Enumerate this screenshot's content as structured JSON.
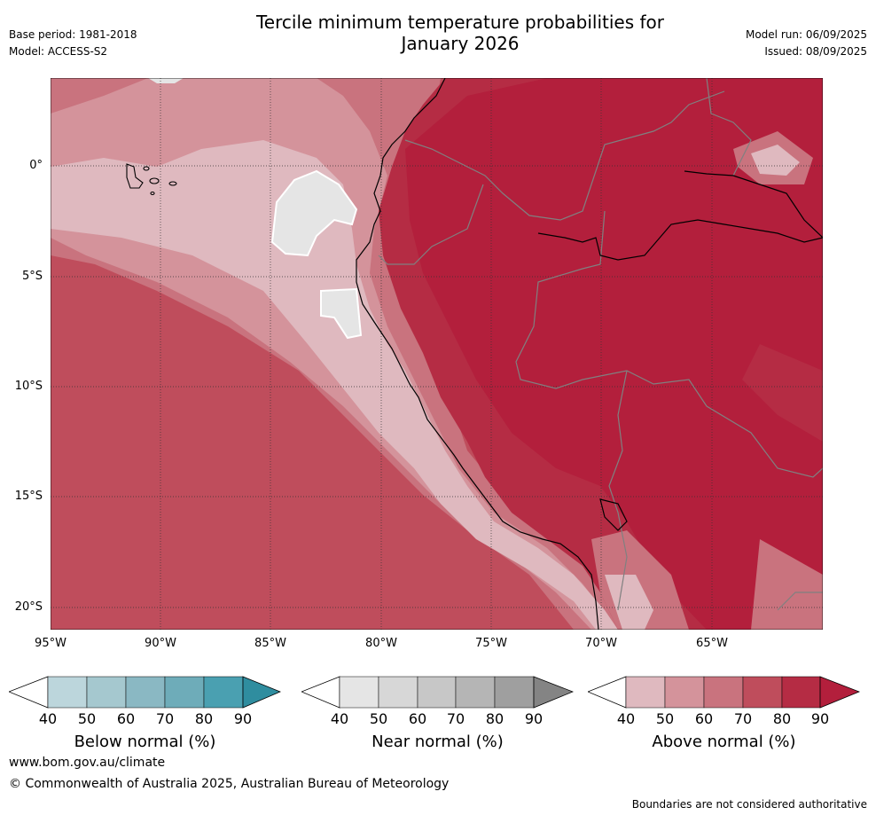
{
  "header": {
    "base_period": "Base period: 1981-2018",
    "model": "Model: ACCESS-S2",
    "title_line1": "Tercile minimum temperature probabilities for",
    "title_line2": "January 2026",
    "model_run": "Model run: 06/09/2025",
    "issued": "Issued: 08/09/2025"
  },
  "map": {
    "lat_labels": [
      "0°",
      "5°S",
      "10°S",
      "15°S",
      "20°S"
    ],
    "lon_labels": [
      "95°W",
      "90°W",
      "85°W",
      "80°W",
      "75°W",
      "70°W",
      "65°W"
    ]
  },
  "legends": [
    {
      "label": "Below normal (%)",
      "ticks": [
        "40",
        "50",
        "60",
        "70",
        "80",
        "90"
      ],
      "colors": [
        "#ffffff",
        "#bcd6dc",
        "#a5c8cf",
        "#8ab8c3",
        "#6eacb9",
        "#4aa0b1",
        "#2f8d9f"
      ]
    },
    {
      "label": "Near normal (%)",
      "ticks": [
        "40",
        "50",
        "60",
        "70",
        "80",
        "90"
      ],
      "colors": [
        "#ffffff",
        "#e5e5e5",
        "#d7d7d7",
        "#c7c7c7",
        "#b5b5b5",
        "#9f9f9f",
        "#848484"
      ]
    },
    {
      "label": "Above normal (%)",
      "ticks": [
        "40",
        "50",
        "60",
        "70",
        "80",
        "90"
      ],
      "colors": [
        "#ffffff",
        "#dfb9bf",
        "#d4939b",
        "#c9737e",
        "#bf4d5c",
        "#b52c44",
        "#b31f3c"
      ]
    }
  ],
  "footer": {
    "website": "www.bom.gov.au/climate",
    "copyright": "© Commonwealth of Australia 2025, Australian Bureau of Meteorology",
    "disclaimer": "Boundaries are not considered authoritative"
  }
}
